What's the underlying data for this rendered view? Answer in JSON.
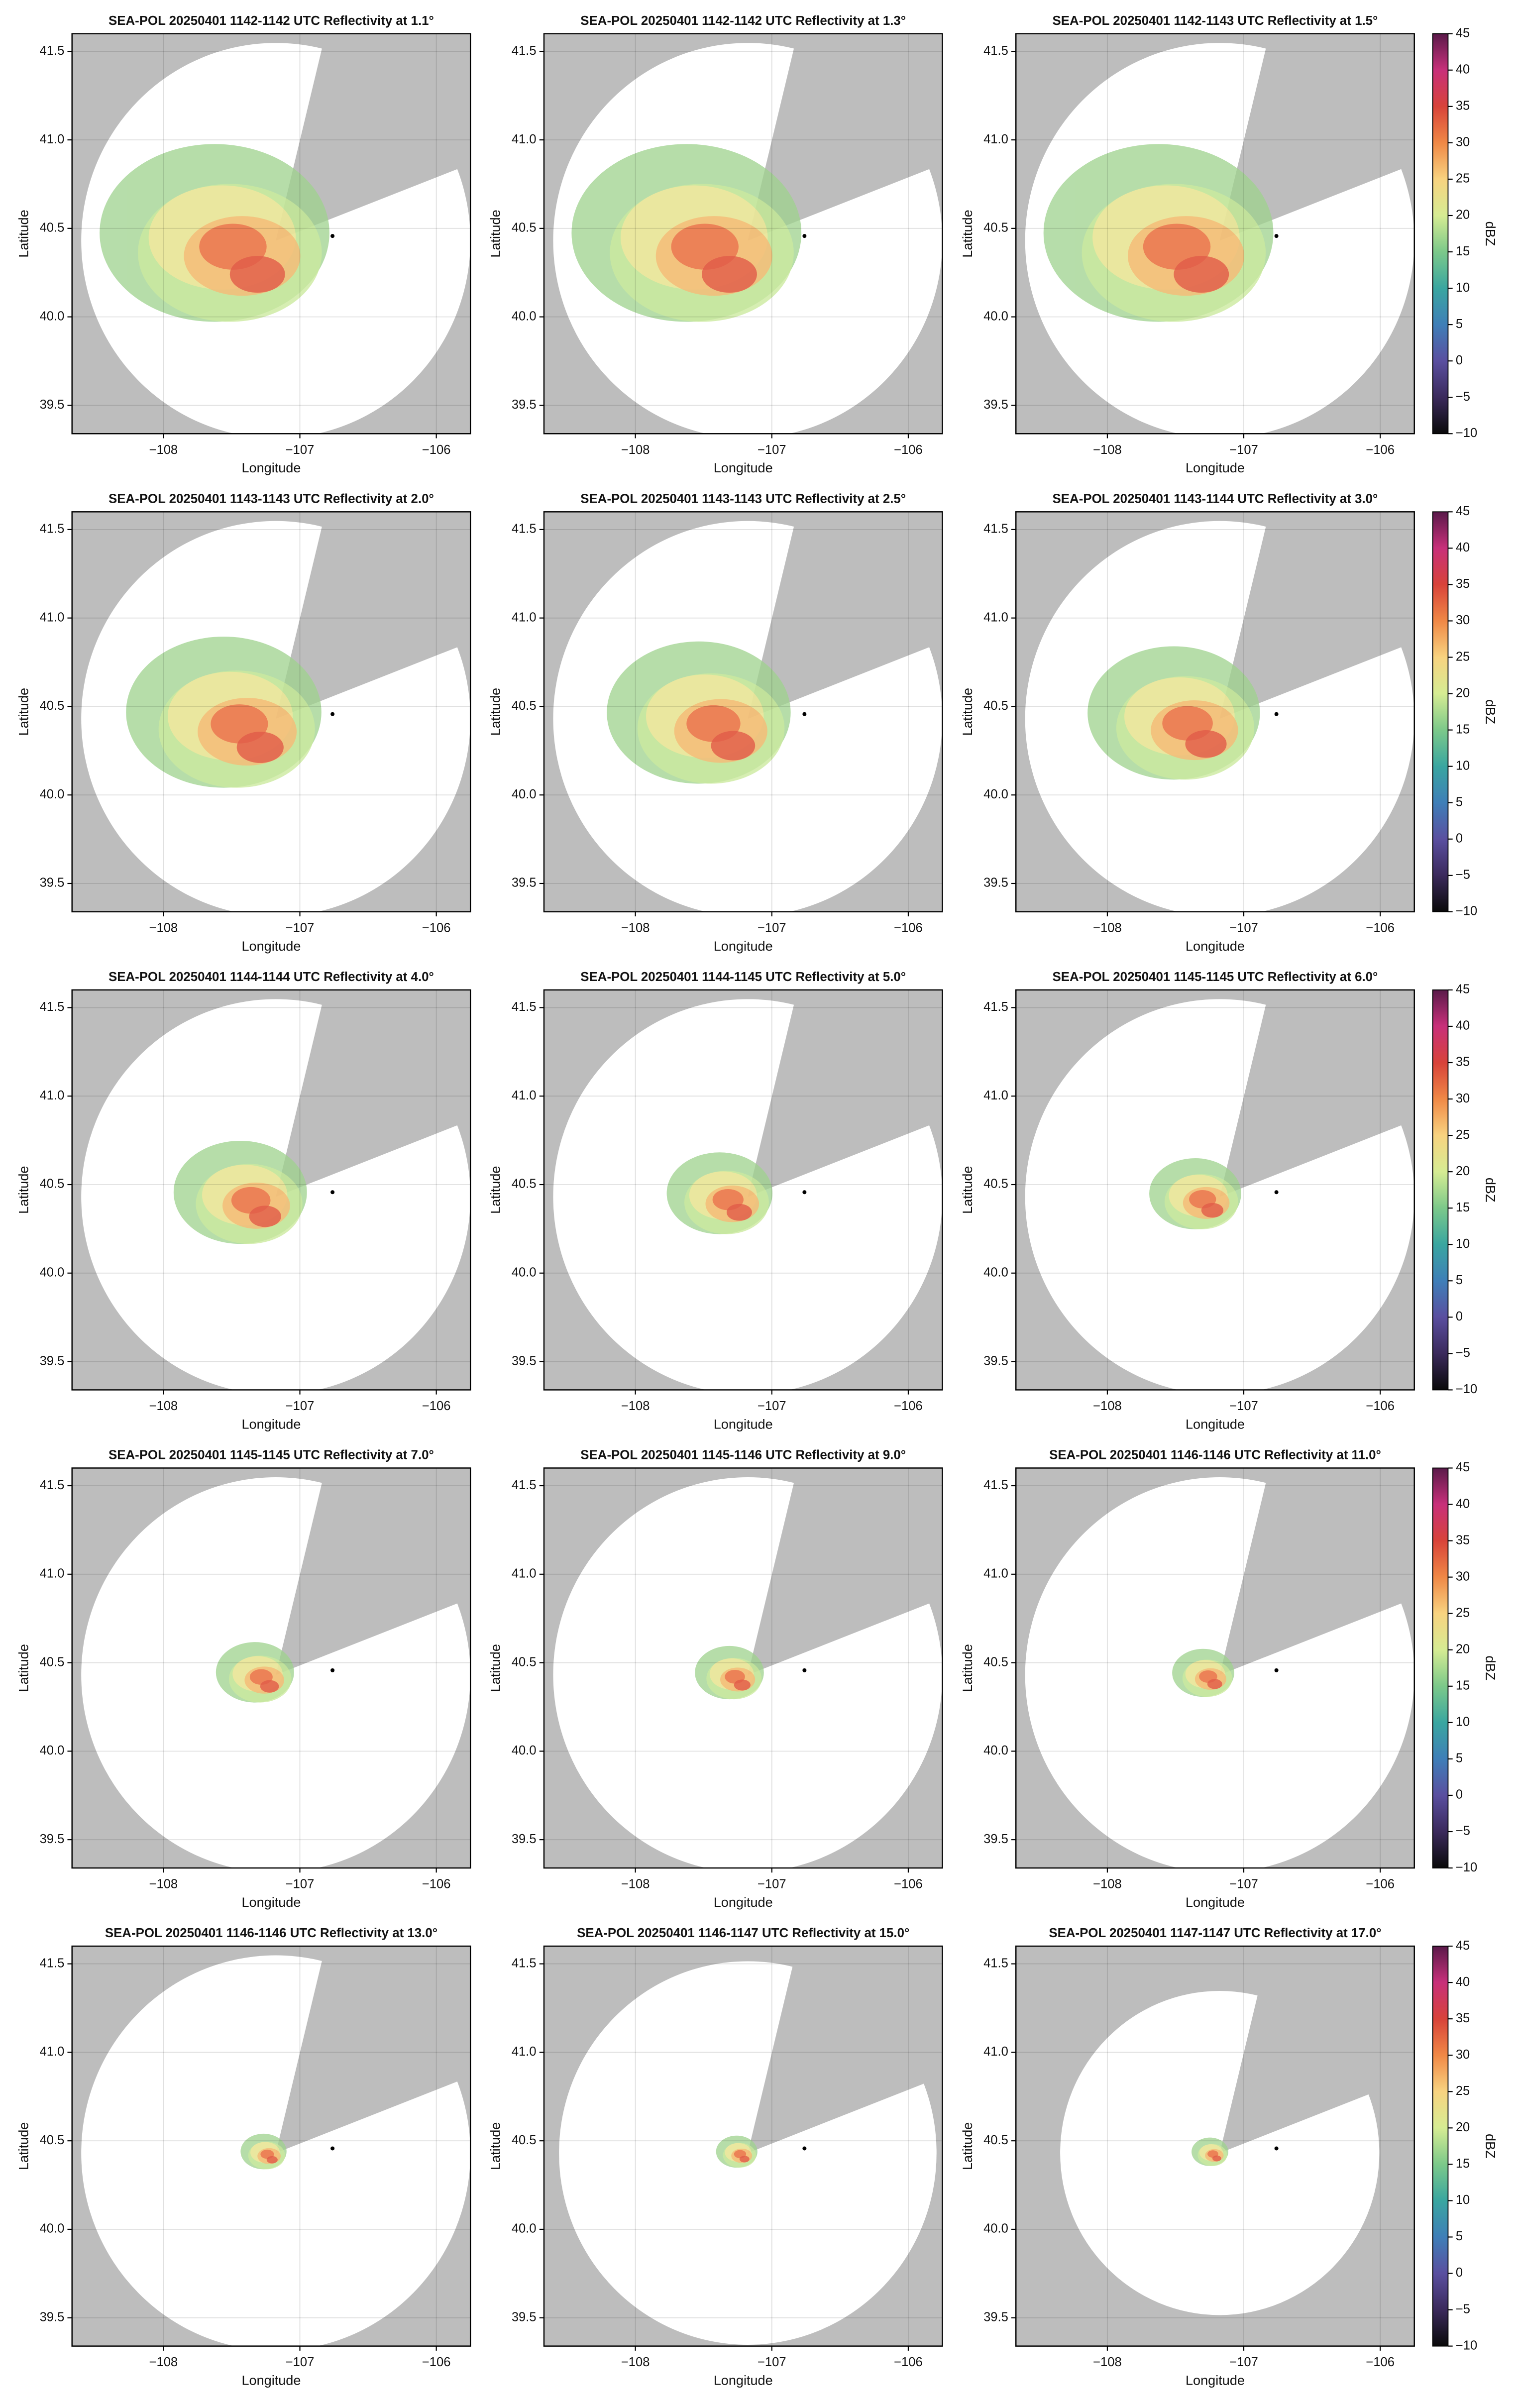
{
  "chart_data": [
    {
      "type": "ppi",
      "title": "SEA-POL 20250401 1142-1142 UTC Reflectivity at 1.1°",
      "xlabel": "Longitude",
      "ylabel": "Latitude",
      "xlim": [
        -108.67,
        -105.75
      ],
      "ylim": [
        39.34,
        41.6
      ],
      "xticks": [
        {
          "value": -108,
          "label": "−108"
        },
        {
          "value": -107,
          "label": "−107"
        },
        {
          "value": -106,
          "label": "−106"
        }
      ],
      "yticks": [
        39.5,
        {
          "value": 40,
          "label": "40.0"
        },
        40.5,
        {
          "value": 41,
          "label": "41.0"
        },
        41.5
      ],
      "grid": true
    },
    {
      "type": "ppi",
      "title": "SEA-POL 20250401 1142-1142 UTC Reflectivity at 1.3°",
      "xlabel": "Longitude",
      "ylabel": "Latitude",
      "xlim": [
        -108.67,
        -105.75
      ],
      "ylim": [
        39.34,
        41.6
      ],
      "xticks": [
        {
          "value": -108,
          "label": "−108"
        },
        {
          "value": -107,
          "label": "−107"
        },
        {
          "value": -106,
          "label": "−106"
        }
      ],
      "yticks": [
        39.5,
        {
          "value": 40,
          "label": "40.0"
        },
        40.5,
        {
          "value": 41,
          "label": "41.0"
        },
        41.5
      ],
      "grid": true
    },
    {
      "type": "ppi",
      "title": "SEA-POL 20250401 1142-1143 UTC Reflectivity at 1.5°",
      "xlabel": "Longitude",
      "ylabel": "Latitude",
      "xlim": [
        -108.67,
        -105.75
      ],
      "ylim": [
        39.34,
        41.6
      ],
      "xticks": [
        {
          "value": -108,
          "label": "−108"
        },
        {
          "value": -107,
          "label": "−107"
        },
        {
          "value": -106,
          "label": "−106"
        }
      ],
      "yticks": [
        39.5,
        {
          "value": 40,
          "label": "40.0"
        },
        40.5,
        {
          "value": 41,
          "label": "41.0"
        },
        41.5
      ],
      "grid": true,
      "colorbar": {
        "label": "dBZ",
        "lim": [
          -10,
          45
        ],
        "ticks": [
          {
            "value": -10,
            "label": "−10"
          },
          {
            "value": -5,
            "label": "−5"
          },
          0,
          5,
          10,
          15,
          20,
          25,
          30,
          35,
          40,
          45
        ],
        "colors": [
          "#0a0a0a",
          "#3b2a5c",
          "#5a4fa0",
          "#3f7fb8",
          "#3aa6a0",
          "#7cc98a",
          "#d6ec93",
          "#f8d380",
          "#f08846",
          "#d8433a",
          "#c8307a",
          "#5a1a4a"
        ]
      }
    },
    {
      "type": "ppi",
      "title": "SEA-POL 20250401 1143-1143 UTC Reflectivity at 2.0°",
      "xlabel": "Longitude",
      "ylabel": "Latitude",
      "xlim": [
        -108.67,
        -105.75
      ],
      "ylim": [
        39.34,
        41.6
      ],
      "xticks": [
        {
          "value": -108,
          "label": "−108"
        },
        {
          "value": -107,
          "label": "−107"
        },
        {
          "value": -106,
          "label": "−106"
        }
      ],
      "yticks": [
        39.5,
        {
          "value": 40,
          "label": "40.0"
        },
        40.5,
        {
          "value": 41,
          "label": "41.0"
        },
        41.5
      ],
      "grid": true
    },
    {
      "type": "ppi",
      "title": "SEA-POL 20250401 1143-1143 UTC Reflectivity at 2.5°",
      "xlabel": "Longitude",
      "ylabel": "Latitude",
      "xlim": [
        -108.67,
        -105.75
      ],
      "ylim": [
        39.34,
        41.6
      ],
      "xticks": [
        {
          "value": -108,
          "label": "−108"
        },
        {
          "value": -107,
          "label": "−107"
        },
        {
          "value": -106,
          "label": "−106"
        }
      ],
      "yticks": [
        39.5,
        {
          "value": 40,
          "label": "40.0"
        },
        40.5,
        {
          "value": 41,
          "label": "41.0"
        },
        41.5
      ],
      "grid": true
    },
    {
      "type": "ppi",
      "title": "SEA-POL 20250401 1143-1144 UTC Reflectivity at 3.0°",
      "xlabel": "Longitude",
      "ylabel": "Latitude",
      "xlim": [
        -108.67,
        -105.75
      ],
      "ylim": [
        39.34,
        41.6
      ],
      "xticks": [
        {
          "value": -108,
          "label": "−108"
        },
        {
          "value": -107,
          "label": "−107"
        },
        {
          "value": -106,
          "label": "−106"
        }
      ],
      "yticks": [
        39.5,
        {
          "value": 40,
          "label": "40.0"
        },
        40.5,
        {
          "value": 41,
          "label": "41.0"
        },
        41.5
      ],
      "grid": true,
      "colorbar": {
        "label": "dBZ",
        "lim": [
          -10,
          45
        ],
        "ticks": [
          {
            "value": -10,
            "label": "−10"
          },
          {
            "value": -5,
            "label": "−5"
          },
          0,
          5,
          10,
          15,
          20,
          25,
          30,
          35,
          40,
          45
        ],
        "colors": [
          "#0a0a0a",
          "#3b2a5c",
          "#5a4fa0",
          "#3f7fb8",
          "#3aa6a0",
          "#7cc98a",
          "#d6ec93",
          "#f8d380",
          "#f08846",
          "#d8433a",
          "#c8307a",
          "#5a1a4a"
        ]
      }
    },
    {
      "type": "ppi",
      "title": "SEA-POL 20250401 1144-1144 UTC Reflectivity at 4.0°",
      "xlabel": "Longitude",
      "ylabel": "Latitude",
      "xlim": [
        -108.67,
        -105.75
      ],
      "ylim": [
        39.34,
        41.6
      ],
      "xticks": [
        {
          "value": -108,
          "label": "−108"
        },
        {
          "value": -107,
          "label": "−107"
        },
        {
          "value": -106,
          "label": "−106"
        }
      ],
      "yticks": [
        39.5,
        {
          "value": 40,
          "label": "40.0"
        },
        40.5,
        {
          "value": 41,
          "label": "41.0"
        },
        41.5
      ],
      "grid": true
    },
    {
      "type": "ppi",
      "title": "SEA-POL 20250401 1144-1145 UTC Reflectivity at 5.0°",
      "xlabel": "Longitude",
      "ylabel": "Latitude",
      "xlim": [
        -108.67,
        -105.75
      ],
      "ylim": [
        39.34,
        41.6
      ],
      "xticks": [
        {
          "value": -108,
          "label": "−108"
        },
        {
          "value": -107,
          "label": "−107"
        },
        {
          "value": -106,
          "label": "−106"
        }
      ],
      "yticks": [
        39.5,
        {
          "value": 40,
          "label": "40.0"
        },
        40.5,
        {
          "value": 41,
          "label": "41.0"
        },
        41.5
      ],
      "grid": true
    },
    {
      "type": "ppi",
      "title": "SEA-POL 20250401 1145-1145 UTC Reflectivity at 6.0°",
      "xlabel": "Longitude",
      "ylabel": "Latitude",
      "xlim": [
        -108.67,
        -105.75
      ],
      "ylim": [
        39.34,
        41.6
      ],
      "xticks": [
        {
          "value": -108,
          "label": "−108"
        },
        {
          "value": -107,
          "label": "−107"
        },
        {
          "value": -106,
          "label": "−106"
        }
      ],
      "yticks": [
        39.5,
        {
          "value": 40,
          "label": "40.0"
        },
        40.5,
        {
          "value": 41,
          "label": "41.0"
        },
        41.5
      ],
      "grid": true,
      "colorbar": {
        "label": "dBZ",
        "lim": [
          -10,
          45
        ],
        "ticks": [
          {
            "value": -10,
            "label": "−10"
          },
          {
            "value": -5,
            "label": "−5"
          },
          0,
          5,
          10,
          15,
          20,
          25,
          30,
          35,
          40,
          45
        ],
        "colors": [
          "#0a0a0a",
          "#3b2a5c",
          "#5a4fa0",
          "#3f7fb8",
          "#3aa6a0",
          "#7cc98a",
          "#d6ec93",
          "#f8d380",
          "#f08846",
          "#d8433a",
          "#c8307a",
          "#5a1a4a"
        ]
      }
    },
    {
      "type": "ppi",
      "title": "SEA-POL 20250401 1145-1145 UTC Reflectivity at 7.0°",
      "xlabel": "Longitude",
      "ylabel": "Latitude",
      "xlim": [
        -108.67,
        -105.75
      ],
      "ylim": [
        39.34,
        41.6
      ],
      "xticks": [
        {
          "value": -108,
          "label": "−108"
        },
        {
          "value": -107,
          "label": "−107"
        },
        {
          "value": -106,
          "label": "−106"
        }
      ],
      "yticks": [
        39.5,
        {
          "value": 40,
          "label": "40.0"
        },
        40.5,
        {
          "value": 41,
          "label": "41.0"
        },
        41.5
      ],
      "grid": true
    },
    {
      "type": "ppi",
      "title": "SEA-POL 20250401 1145-1146 UTC Reflectivity at 9.0°",
      "xlabel": "Longitude",
      "ylabel": "Latitude",
      "xlim": [
        -108.67,
        -105.75
      ],
      "ylim": [
        39.34,
        41.6
      ],
      "xticks": [
        {
          "value": -108,
          "label": "−108"
        },
        {
          "value": -107,
          "label": "−107"
        },
        {
          "value": -106,
          "label": "−106"
        }
      ],
      "yticks": [
        39.5,
        {
          "value": 40,
          "label": "40.0"
        },
        40.5,
        {
          "value": 41,
          "label": "41.0"
        },
        41.5
      ],
      "grid": true
    },
    {
      "type": "ppi",
      "title": "SEA-POL 20250401 1146-1146 UTC Reflectivity at 11.0°",
      "xlabel": "Longitude",
      "ylabel": "Latitude",
      "xlim": [
        -108.67,
        -105.75
      ],
      "ylim": [
        39.34,
        41.6
      ],
      "xticks": [
        {
          "value": -108,
          "label": "−108"
        },
        {
          "value": -107,
          "label": "−107"
        },
        {
          "value": -106,
          "label": "−106"
        }
      ],
      "yticks": [
        39.5,
        {
          "value": 40,
          "label": "40.0"
        },
        40.5,
        {
          "value": 41,
          "label": "41.0"
        },
        41.5
      ],
      "grid": true,
      "colorbar": {
        "label": "dBZ",
        "lim": [
          -10,
          45
        ],
        "ticks": [
          {
            "value": -10,
            "label": "−10"
          },
          {
            "value": -5,
            "label": "−5"
          },
          0,
          5,
          10,
          15,
          20,
          25,
          30,
          35,
          40,
          45
        ],
        "colors": [
          "#0a0a0a",
          "#3b2a5c",
          "#5a4fa0",
          "#3f7fb8",
          "#3aa6a0",
          "#7cc98a",
          "#d6ec93",
          "#f8d380",
          "#f08846",
          "#d8433a",
          "#c8307a",
          "#5a1a4a"
        ]
      }
    },
    {
      "type": "ppi",
      "title": "SEA-POL 20250401 1146-1146 UTC Reflectivity at 13.0°",
      "xlabel": "Longitude",
      "ylabel": "Latitude",
      "xlim": [
        -108.67,
        -105.75
      ],
      "ylim": [
        39.34,
        41.6
      ],
      "xticks": [
        {
          "value": -108,
          "label": "−108"
        },
        {
          "value": -107,
          "label": "−107"
        },
        {
          "value": -106,
          "label": "−106"
        }
      ],
      "yticks": [
        39.5,
        {
          "value": 40,
          "label": "40.0"
        },
        40.5,
        {
          "value": 41,
          "label": "41.0"
        },
        41.5
      ],
      "grid": true
    },
    {
      "type": "ppi",
      "title": "SEA-POL 20250401 1146-1147 UTC Reflectivity at 15.0°",
      "xlabel": "Longitude",
      "ylabel": "Latitude",
      "xlim": [
        -108.67,
        -105.75
      ],
      "ylim": [
        39.34,
        41.6
      ],
      "xticks": [
        {
          "value": -108,
          "label": "−108"
        },
        {
          "value": -107,
          "label": "−107"
        },
        {
          "value": -106,
          "label": "−106"
        }
      ],
      "yticks": [
        39.5,
        {
          "value": 40,
          "label": "40.0"
        },
        40.5,
        {
          "value": 41,
          "label": "41.0"
        },
        41.5
      ],
      "grid": true
    },
    {
      "type": "ppi",
      "title": "SEA-POL 20250401 1147-1147 UTC Reflectivity at 17.0°",
      "xlabel": "Longitude",
      "ylabel": "Latitude",
      "xlim": [
        -108.67,
        -105.75
      ],
      "ylim": [
        39.34,
        41.6
      ],
      "xticks": [
        {
          "value": -108,
          "label": "−108"
        },
        {
          "value": -107,
          "label": "−107"
        },
        {
          "value": -106,
          "label": "−106"
        }
      ],
      "yticks": [
        39.5,
        {
          "value": 40,
          "label": "40.0"
        },
        40.5,
        {
          "value": 41,
          "label": "41.0"
        },
        41.5
      ],
      "grid": true,
      "colorbar": {
        "label": "dBZ",
        "lim": [
          -10,
          45
        ],
        "ticks": [
          {
            "value": -10,
            "label": "−10"
          },
          {
            "value": -5,
            "label": "−5"
          },
          0,
          5,
          10,
          15,
          20,
          25,
          30,
          35,
          40,
          45
        ],
        "colors": [
          "#0a0a0a",
          "#3b2a5c",
          "#5a4fa0",
          "#3f7fb8",
          "#3aa6a0",
          "#7cc98a",
          "#d6ec93",
          "#f8d380",
          "#f08846",
          "#d8433a",
          "#c8307a",
          "#5a1a4a"
        ]
      }
    }
  ]
}
